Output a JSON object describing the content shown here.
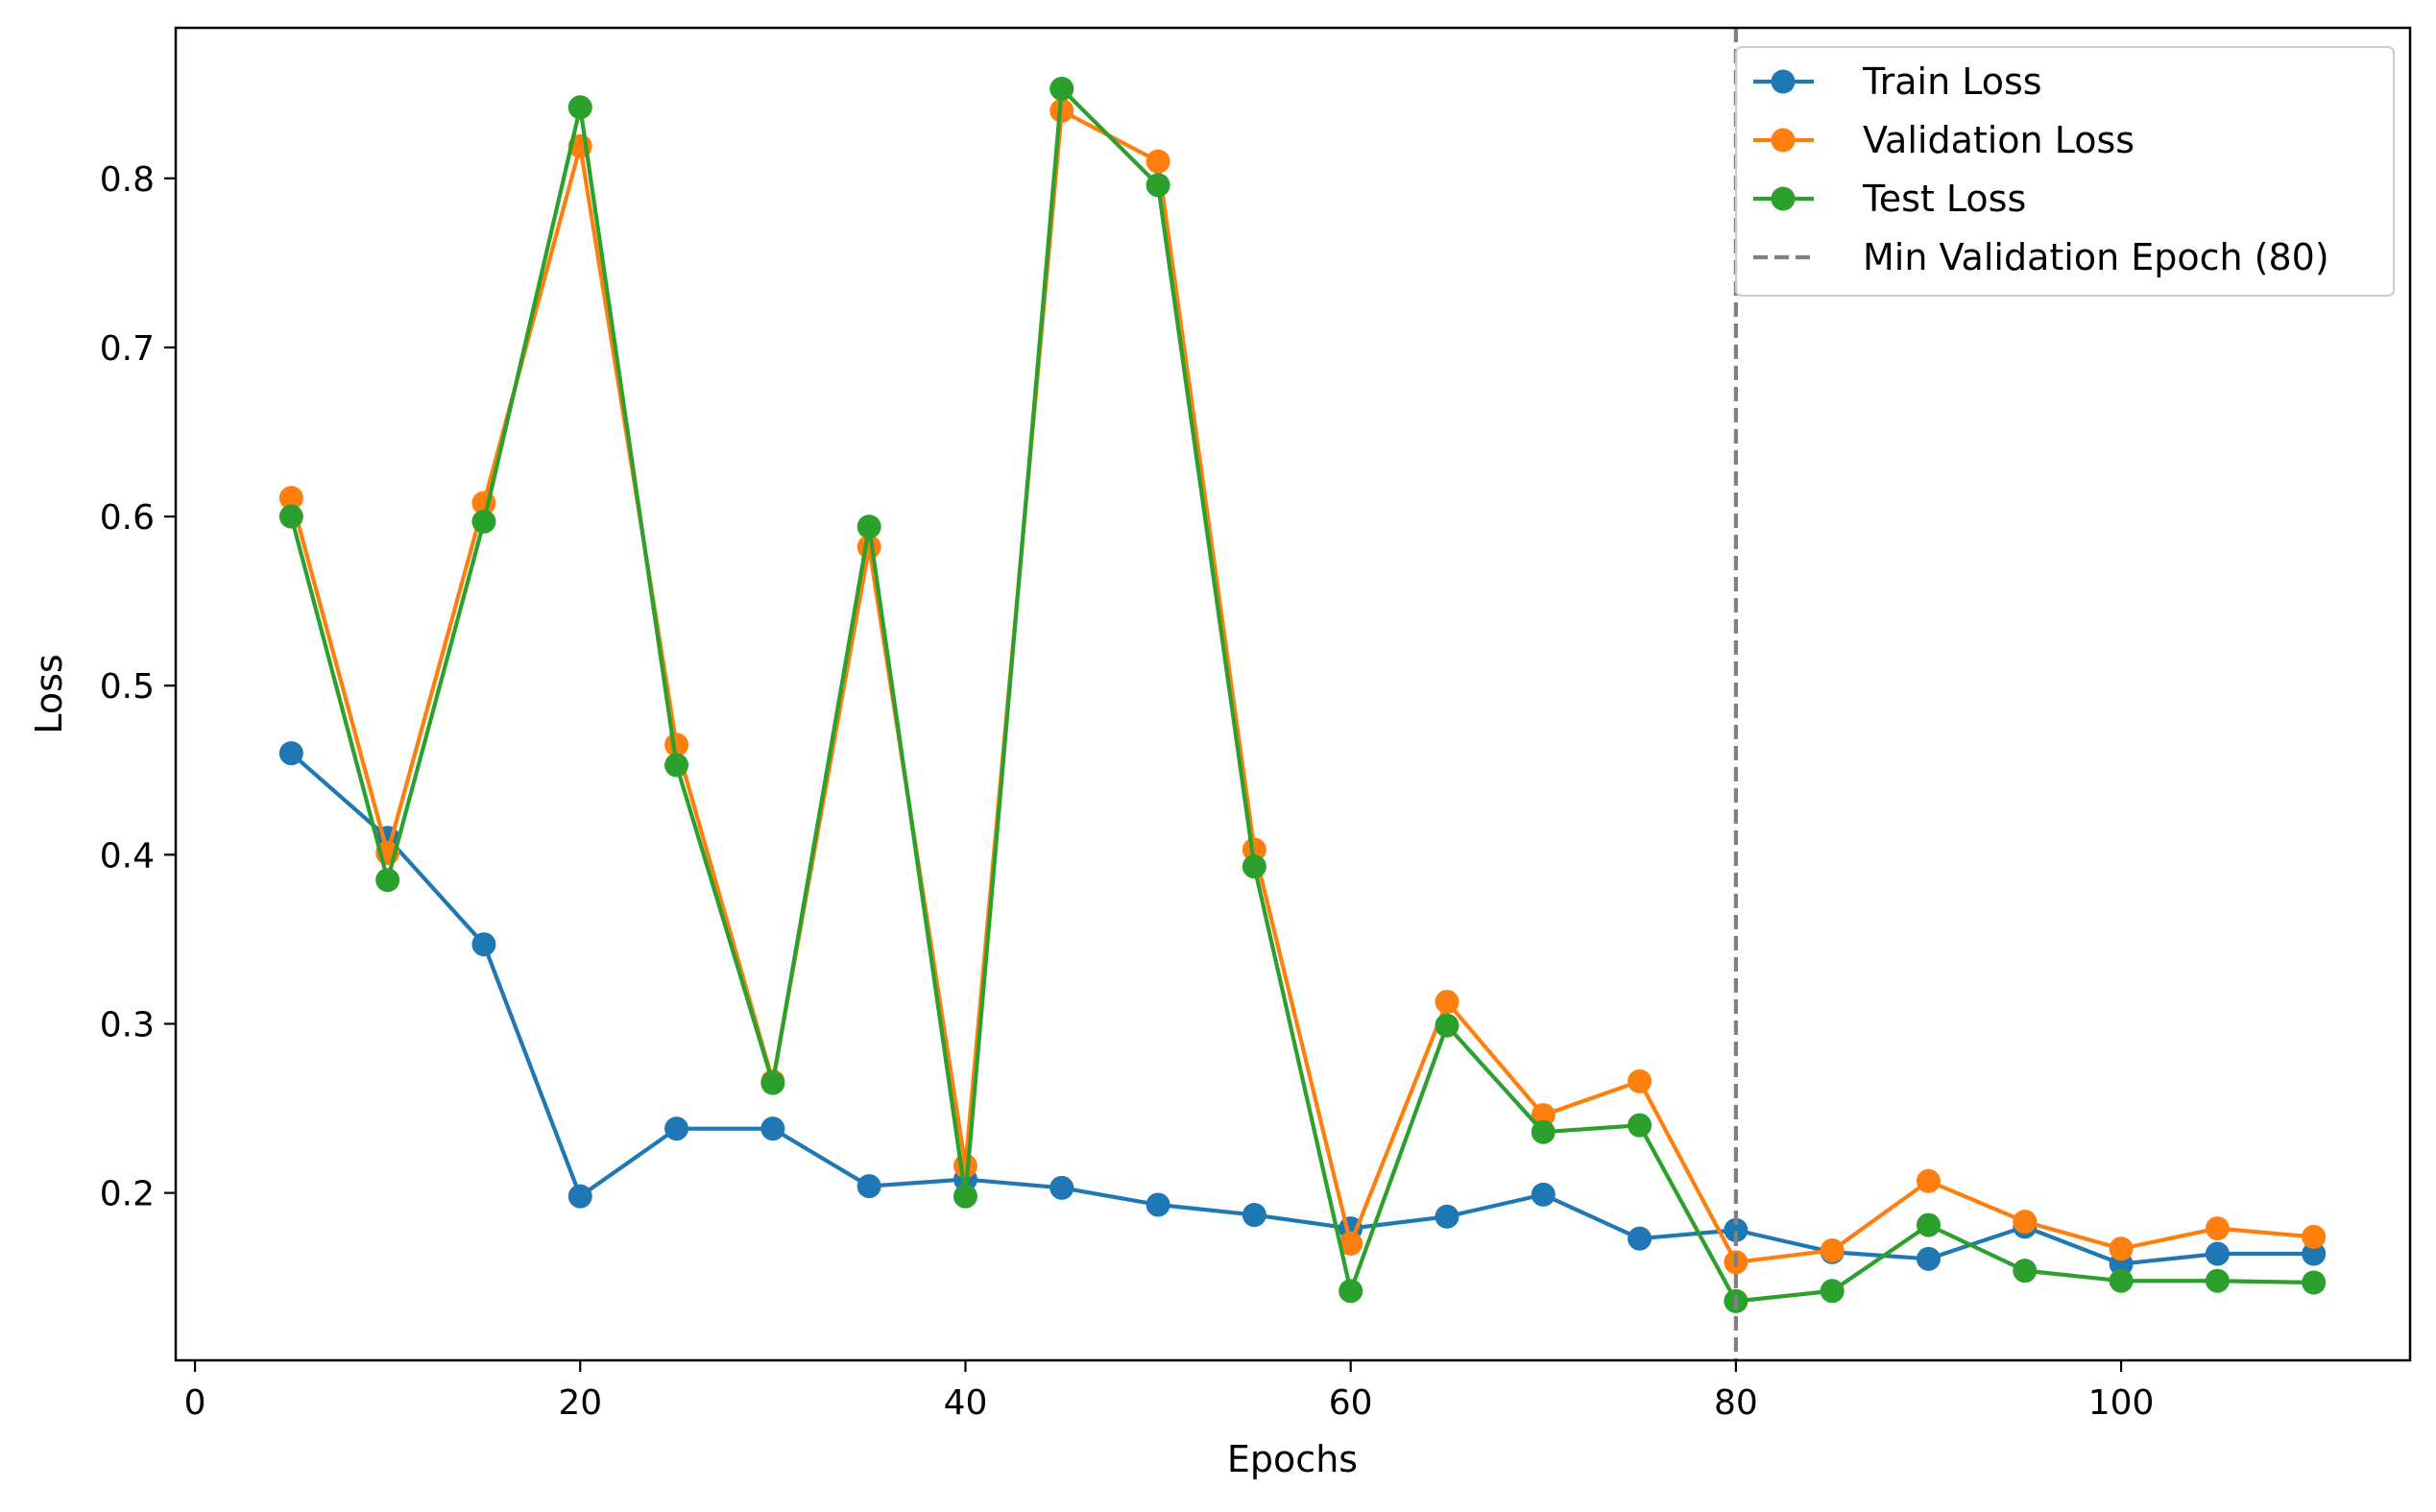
{
  "chart_data": {
    "type": "line",
    "title": "",
    "xlabel": "Epochs",
    "ylabel": "Loss",
    "xlim": [
      -1,
      115
    ],
    "ylim": [
      0.101,
      0.889
    ],
    "xticks": [
      0,
      20,
      40,
      60,
      80,
      100
    ],
    "xtick_labels": [
      "0",
      "20",
      "40",
      "60",
      "80",
      "100"
    ],
    "yticks": [
      0.2,
      0.3,
      0.4,
      0.5,
      0.6,
      0.7,
      0.8
    ],
    "ytick_labels": [
      "0.2",
      "0.3",
      "0.4",
      "0.5",
      "0.6",
      "0.7",
      "0.8"
    ],
    "grid": false,
    "legend_position": "top-right",
    "x": [
      5,
      10,
      15,
      20,
      25,
      30,
      35,
      40,
      45,
      50,
      55,
      60,
      65,
      70,
      75,
      80,
      85,
      90,
      95,
      100,
      105,
      110
    ],
    "series": [
      {
        "name": "Train Loss",
        "color": "#1f77b4",
        "marker": "circle",
        "values": [
          0.46,
          0.41,
          0.347,
          0.198,
          0.238,
          0.238,
          0.204,
          0.208,
          0.203,
          0.193,
          0.187,
          0.179,
          0.186,
          0.199,
          0.173,
          0.178,
          0.165,
          0.161,
          0.18,
          0.158,
          0.164,
          0.164
        ]
      },
      {
        "name": "Validation Loss",
        "color": "#ff7f0e",
        "marker": "circle",
        "values": [
          0.611,
          0.401,
          0.608,
          0.819,
          0.465,
          0.266,
          0.582,
          0.216,
          0.84,
          0.81,
          0.403,
          0.17,
          0.313,
          0.246,
          0.266,
          0.159,
          0.166,
          0.207,
          0.183,
          0.167,
          0.179,
          0.174
        ]
      },
      {
        "name": "Test Loss",
        "color": "#2ca02c",
        "marker": "circle",
        "values": [
          0.6,
          0.385,
          0.597,
          0.842,
          0.453,
          0.265,
          0.594,
          0.198,
          0.853,
          0.796,
          0.393,
          0.142,
          0.299,
          0.236,
          0.24,
          0.136,
          0.142,
          0.181,
          0.154,
          0.148,
          0.148,
          0.147
        ]
      }
    ],
    "vline": {
      "x": 80,
      "label": "Min Validation Epoch (80)",
      "color": "#808080",
      "style": "dashed"
    }
  }
}
